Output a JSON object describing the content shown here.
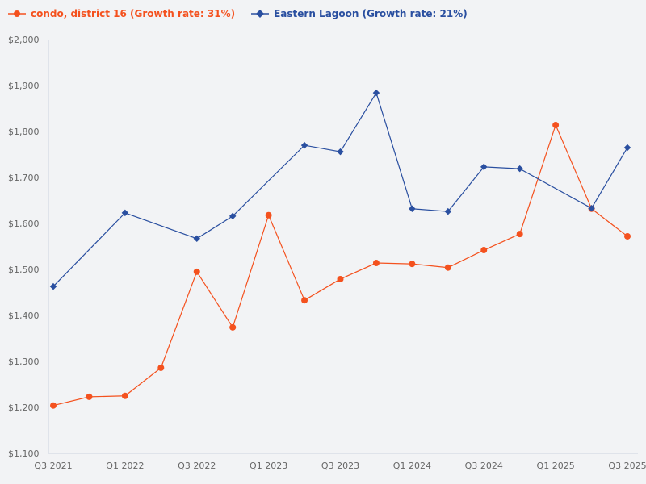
{
  "chart_data": {
    "type": "line",
    "title": "",
    "xlabel": "",
    "ylabel": "",
    "x": [
      "Q3 2021",
      "Q4 2021",
      "Q1 2022",
      "Q2 2022",
      "Q3 2022",
      "Q4 2022",
      "Q1 2023",
      "Q2 2023",
      "Q3 2023",
      "Q4 2023",
      "Q1 2024",
      "Q2 2024",
      "Q3 2024",
      "Q4 2024",
      "Q1 2025",
      "Q2 2025",
      "Q3 2025"
    ],
    "x_tick_labels": [
      "Q3 2021",
      "Q1 2022",
      "Q3 2022",
      "Q1 2023",
      "Q3 2023",
      "Q1 2024",
      "Q3 2024",
      "Q1 2025",
      "Q3 2025"
    ],
    "ylim": [
      1100,
      2000
    ],
    "y_ticks": [
      1100,
      1200,
      1300,
      1400,
      1500,
      1600,
      1700,
      1800,
      1900,
      2000
    ],
    "y_tick_labels": [
      "$1,100",
      "$1,200",
      "$1,300",
      "$1,400",
      "$1,500",
      "$1,600",
      "$1,700",
      "$1,800",
      "$1,900",
      "$2,000"
    ],
    "grid": false,
    "legend_placement": "top-left",
    "series": [
      {
        "name": "condo, district 16 (Growth rate: 31%)",
        "color": "#f4511e",
        "marker": "circle",
        "values": [
          1204,
          1223,
          1225,
          1286,
          1495,
          1374,
          1618,
          1433,
          1479,
          1514,
          1512,
          1504,
          1542,
          1577,
          1814,
          1632,
          1572
        ]
      },
      {
        "name": "Eastern Lagoon (Growth rate: 21%)",
        "color": "#2a4fa0",
        "marker": "diamond",
        "values": [
          1463,
          null,
          1623,
          null,
          1567,
          1616,
          null,
          1770,
          1756,
          1884,
          1632,
          1626,
          1723,
          1719,
          null,
          1633,
          1765
        ]
      }
    ]
  }
}
